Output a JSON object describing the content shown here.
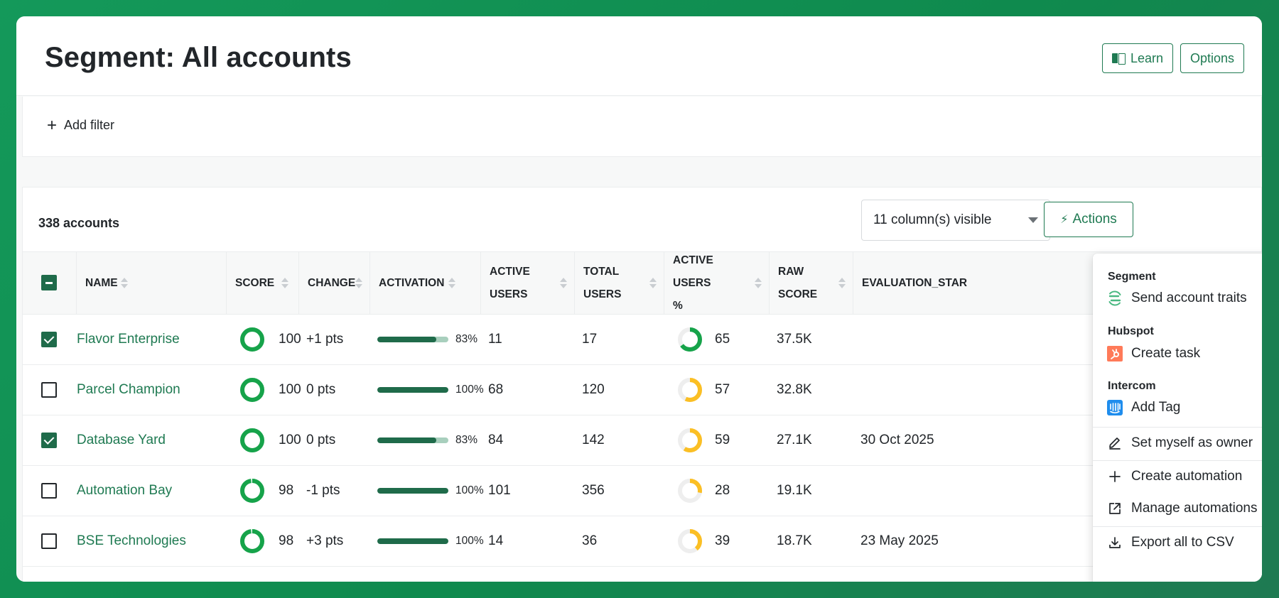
{
  "header": {
    "title": "Segment: All accounts",
    "learn_label": "Learn",
    "options_label": "Options"
  },
  "filter": {
    "add_label": "Add filter"
  },
  "table": {
    "count_label": "338 accounts",
    "columns_select": "11 column(s) visible",
    "actions_label": "Actions",
    "headers": {
      "name": "NAME",
      "score": "SCORE",
      "change": "CHANGE",
      "activation": "ACTIVATION",
      "active_users_1": "ACTIVE",
      "active_users_2": "USERS",
      "total_users_1": "TOTAL",
      "total_users_2": "USERS",
      "active_pct_1": "ACTIVE USERS",
      "active_pct_2": "%",
      "raw_score_1": "RAW",
      "raw_score_2": "SCORE",
      "evaluation": "EVALUATION_STAR"
    },
    "rows": [
      {
        "checked": true,
        "name": "Flavor Enterprise",
        "score": "100",
        "change": "+1 pts",
        "activation": 0.83,
        "activation_label": "83%",
        "active_users": "11",
        "total_users": "17",
        "active_pct": 65,
        "active_pct_label": "65",
        "raw_score": "37.5K",
        "evaluation": ""
      },
      {
        "checked": false,
        "name": "Parcel Champion",
        "score": "100",
        "change": "0 pts",
        "activation": 1.0,
        "activation_label": "100%",
        "active_users": "68",
        "total_users": "120",
        "active_pct": 57,
        "active_pct_label": "57",
        "raw_score": "32.8K",
        "evaluation": ""
      },
      {
        "checked": true,
        "name": "Database Yard",
        "score": "100",
        "change": "0 pts",
        "activation": 0.83,
        "activation_label": "83%",
        "active_users": "84",
        "total_users": "142",
        "active_pct": 59,
        "active_pct_label": "59",
        "raw_score": "27.1K",
        "evaluation": "30 Oct 2025"
      },
      {
        "checked": false,
        "name": "Automation Bay",
        "score": "98",
        "change": "-1 pts",
        "activation": 1.0,
        "activation_label": "100%",
        "active_users": "101",
        "total_users": "356",
        "active_pct": 28,
        "active_pct_label": "28",
        "raw_score": "19.1K",
        "evaluation": ""
      },
      {
        "checked": false,
        "name": "BSE Technologies",
        "score": "98",
        "change": "+3 pts",
        "activation": 1.0,
        "activation_label": "100%",
        "active_users": "14",
        "total_users": "36",
        "active_pct": 39,
        "active_pct_label": "39",
        "raw_score": "18.7K",
        "evaluation": "23 May 2025"
      }
    ]
  },
  "dropdown": {
    "segment_group": "Segment",
    "send_traits": "Send account traits",
    "hubspot_group": "Hubspot",
    "create_task": "Create task",
    "intercom_group": "Intercom",
    "add_tag": "Add Tag",
    "set_owner": "Set myself as owner",
    "create_automation": "Create automation",
    "manage_automations": "Manage automations",
    "export_csv": "Export all to CSV"
  },
  "colors": {
    "brand": "#1f7a52",
    "ring_green": "#16a34a",
    "ring_yellow": "#fbbf24",
    "hubspot": "#ff7a59",
    "intercom": "#1f8ded"
  }
}
